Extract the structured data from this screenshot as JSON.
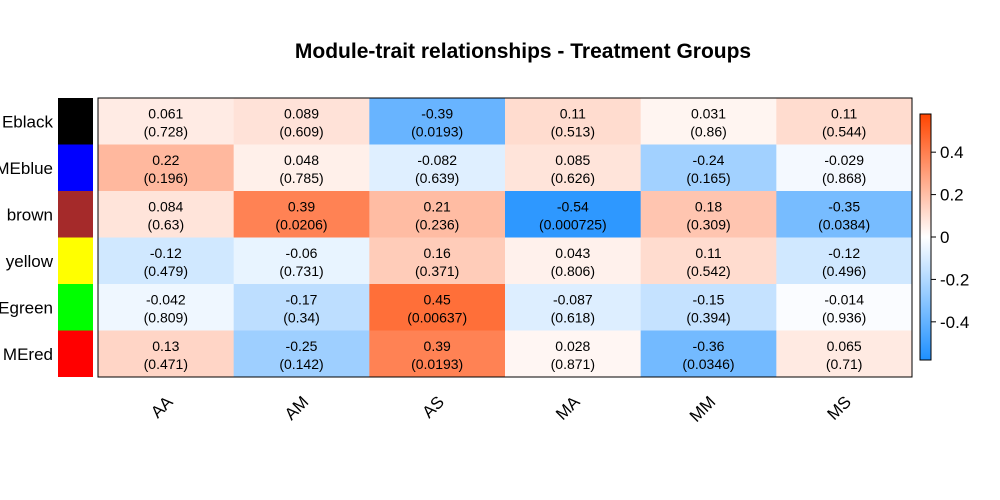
{
  "chart_data": {
    "type": "heatmap",
    "title": "Module-trait relationships - Treatment Groups",
    "row_labels": [
      "MEblack",
      "MEblue",
      "MEbrown",
      "MEyellow",
      "MEgreen",
      "MEred"
    ],
    "row_label_visible": [
      "Eblack",
      "MEblue",
      "brown",
      "yellow",
      "Egreen",
      "MEred"
    ],
    "row_colors": [
      "#000000",
      "#0000ff",
      "#a52a2a",
      "#ffff00",
      "#00ff00",
      "#ff0000"
    ],
    "columns": [
      "AA",
      "AM",
      "AS",
      "MA",
      "MM",
      "MS"
    ],
    "values": [
      [
        0.061,
        0.089,
        -0.39,
        0.11,
        0.031,
        0.11
      ],
      [
        0.22,
        0.048,
        -0.082,
        0.085,
        -0.24,
        -0.029
      ],
      [
        0.084,
        0.39,
        0.21,
        -0.54,
        0.18,
        -0.35
      ],
      [
        -0.12,
        -0.06,
        0.16,
        0.043,
        0.11,
        -0.12
      ],
      [
        -0.042,
        -0.17,
        0.45,
        -0.087,
        -0.15,
        -0.014
      ],
      [
        0.13,
        -0.25,
        0.39,
        0.028,
        -0.36,
        0.065
      ]
    ],
    "value_labels": [
      [
        "0.061",
        "0.089",
        "-0.39",
        "0.11",
        "0.031",
        "0.11"
      ],
      [
        "0.22",
        "0.048",
        "-0.082",
        "0.085",
        "-0.24",
        "-0.029"
      ],
      [
        "0.084",
        "0.39",
        "0.21",
        "-0.54",
        "0.18",
        "-0.35"
      ],
      [
        "-0.12",
        "-0.06",
        "0.16",
        "0.043",
        "0.11",
        "-0.12"
      ],
      [
        "-0.042",
        "-0.17",
        "0.45",
        "-0.087",
        "-0.15",
        "-0.014"
      ],
      [
        "0.13",
        "-0.25",
        "0.39",
        "0.028",
        "-0.36",
        "0.065"
      ]
    ],
    "p_value_labels": [
      [
        "(0.728)",
        "(0.609)",
        "(0.0193)",
        "(0.513)",
        "(0.86)",
        "(0.544)"
      ],
      [
        "(0.196)",
        "(0.785)",
        "(0.639)",
        "(0.626)",
        "(0.165)",
        "(0.868)"
      ],
      [
        "(0.63)",
        "(0.0206)",
        "(0.236)",
        "(0.000725)",
        "(0.309)",
        "(0.0384)"
      ],
      [
        "(0.479)",
        "(0.731)",
        "(0.371)",
        "(0.806)",
        "(0.542)",
        "(0.496)"
      ],
      [
        "(0.809)",
        "(0.34)",
        "(0.00637)",
        "(0.618)",
        "(0.394)",
        "(0.936)"
      ],
      [
        "(0.471)",
        "(0.142)",
        "(0.0193)",
        "(0.871)",
        "(0.0346)",
        "(0.71)"
      ]
    ],
    "colorbar": {
      "range": [
        -0.58,
        0.58
      ],
      "tick_values": [
        0.4,
        0.2,
        0,
        -0.2,
        -0.4
      ],
      "tick_labels": [
        "0.4",
        "0.2",
        "0",
        "-0.2",
        "-0.4"
      ],
      "low_color": "#1e90ff",
      "mid_color": "#ffffff",
      "high_color": "#ff4500",
      "placement": "right"
    },
    "grid": false
  }
}
